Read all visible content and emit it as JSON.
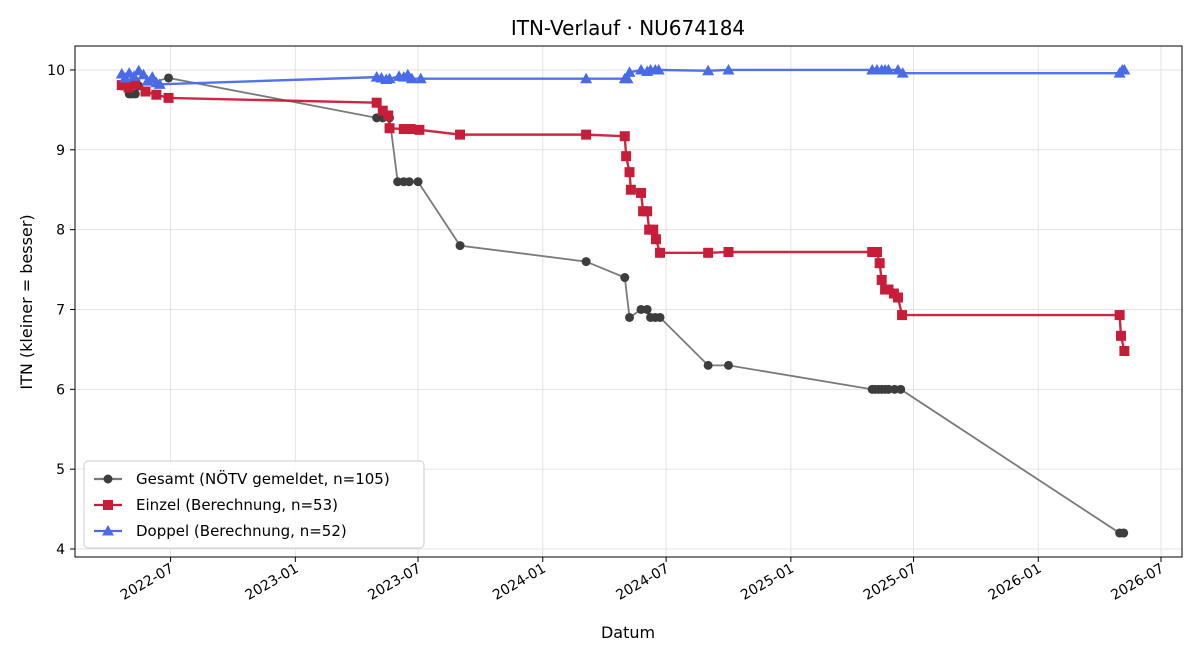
{
  "chart_data": {
    "type": "line",
    "title": "ITN-Verlauf · NU674184",
    "xlabel": "Datum",
    "ylabel": "ITN  (kleiner = besser)",
    "xlim": [
      "2022-02-10",
      "2026-08-01"
    ],
    "ylim": [
      3.9,
      10.3
    ],
    "grid": true,
    "legend_position": "bottom-left",
    "x_ticks": [
      "2022-07-01",
      "2023-01-01",
      "2023-07-01",
      "2024-01-01",
      "2024-07-01",
      "2025-01-01",
      "2025-07-01",
      "2026-01-01",
      "2026-07-01"
    ],
    "x_tick_labels": [
      "2022-07",
      "2023-01",
      "2023-07",
      "2024-01",
      "2024-07",
      "2025-01",
      "2025-07",
      "2026-01",
      "2026-07"
    ],
    "y_ticks": [
      4,
      5,
      6,
      7,
      8,
      9,
      10
    ],
    "series": [
      {
        "name": "Gesamt (NÖTV gemeldet, n=105)",
        "color": "#3d3d3d",
        "line_color": "#7a7a7a",
        "marker": "circle",
        "points": [
          [
            "2022-04-20",
            9.8
          ],
          [
            "2022-04-25",
            9.8
          ],
          [
            "2022-05-01",
            9.7
          ],
          [
            "2022-05-05",
            9.7
          ],
          [
            "2022-05-10",
            9.7
          ],
          [
            "2022-05-15",
            9.8
          ],
          [
            "2022-06-28",
            9.9
          ],
          [
            "2023-05-01",
            9.4
          ],
          [
            "2023-05-10",
            9.4
          ],
          [
            "2023-05-20",
            9.4
          ],
          [
            "2023-06-01",
            8.6
          ],
          [
            "2023-06-10",
            8.6
          ],
          [
            "2023-06-18",
            8.6
          ],
          [
            "2023-07-01",
            8.6
          ],
          [
            "2023-09-01",
            7.8
          ],
          [
            "2024-03-05",
            7.6
          ],
          [
            "2024-05-01",
            7.4
          ],
          [
            "2024-05-08",
            6.9
          ],
          [
            "2024-05-25",
            7.0
          ],
          [
            "2024-06-03",
            7.0
          ],
          [
            "2024-06-08",
            6.9
          ],
          [
            "2024-06-15",
            6.9
          ],
          [
            "2024-06-22",
            6.9
          ],
          [
            "2024-09-01",
            6.3
          ],
          [
            "2024-10-01",
            6.3
          ],
          [
            "2025-05-01",
            6.0
          ],
          [
            "2025-05-05",
            6.0
          ],
          [
            "2025-05-10",
            6.0
          ],
          [
            "2025-05-15",
            6.0
          ],
          [
            "2025-05-20",
            6.0
          ],
          [
            "2025-05-25",
            6.0
          ],
          [
            "2025-06-03",
            6.0
          ],
          [
            "2025-06-12",
            6.0
          ],
          [
            "2026-05-01",
            4.2
          ],
          [
            "2026-05-07",
            4.2
          ]
        ]
      },
      {
        "name": "Einzel (Berechnung, n=53)",
        "color": "#c81d38",
        "line_color": "#c81d38",
        "marker": "square",
        "points": [
          [
            "2022-04-20",
            9.81
          ],
          [
            "2022-04-30",
            9.78
          ],
          [
            "2022-05-10",
            9.82
          ],
          [
            "2022-05-25",
            9.73
          ],
          [
            "2022-06-10",
            9.69
          ],
          [
            "2022-06-28",
            9.65
          ],
          [
            "2023-05-01",
            9.59
          ],
          [
            "2023-05-10",
            9.49
          ],
          [
            "2023-05-18",
            9.43
          ],
          [
            "2023-05-20",
            9.27
          ],
          [
            "2023-06-10",
            9.26
          ],
          [
            "2023-06-20",
            9.26
          ],
          [
            "2023-07-03",
            9.25
          ],
          [
            "2023-09-01",
            9.19
          ],
          [
            "2024-03-05",
            9.19
          ],
          [
            "2024-05-01",
            9.17
          ],
          [
            "2024-05-03",
            8.92
          ],
          [
            "2024-05-08",
            8.72
          ],
          [
            "2024-05-10",
            8.5
          ],
          [
            "2024-05-25",
            8.46
          ],
          [
            "2024-05-28",
            8.23
          ],
          [
            "2024-06-03",
            8.23
          ],
          [
            "2024-06-06",
            8.0
          ],
          [
            "2024-06-12",
            8.0
          ],
          [
            "2024-06-16",
            7.88
          ],
          [
            "2024-06-22",
            7.71
          ],
          [
            "2024-09-01",
            7.71
          ],
          [
            "2024-10-01",
            7.72
          ],
          [
            "2025-05-01",
            7.72
          ],
          [
            "2025-05-08",
            7.72
          ],
          [
            "2025-05-12",
            7.58
          ],
          [
            "2025-05-15",
            7.37
          ],
          [
            "2025-05-20",
            7.25
          ],
          [
            "2025-05-25",
            7.25
          ],
          [
            "2025-06-02",
            7.2
          ],
          [
            "2025-06-08",
            7.15
          ],
          [
            "2025-06-14",
            6.93
          ],
          [
            "2026-05-01",
            6.93
          ],
          [
            "2026-05-03",
            6.67
          ],
          [
            "2026-05-08",
            6.48
          ]
        ]
      },
      {
        "name": "Doppel (Berechnung, n=52)",
        "color": "#4a6be8",
        "line_color": "#4a6be8",
        "marker": "triangle",
        "points": [
          [
            "2022-04-20",
            9.95
          ],
          [
            "2022-04-25",
            9.9
          ],
          [
            "2022-05-01",
            9.96
          ],
          [
            "2022-05-08",
            9.92
          ],
          [
            "2022-05-15",
            9.99
          ],
          [
            "2022-05-22",
            9.94
          ],
          [
            "2022-05-28",
            9.86
          ],
          [
            "2022-06-04",
            9.91
          ],
          [
            "2022-06-10",
            9.84
          ],
          [
            "2022-06-15",
            9.82
          ],
          [
            "2023-05-01",
            9.91
          ],
          [
            "2023-05-08",
            9.9
          ],
          [
            "2023-05-15",
            9.88
          ],
          [
            "2023-05-20",
            9.89
          ],
          [
            "2023-06-03",
            9.92
          ],
          [
            "2023-06-10",
            9.91
          ],
          [
            "2023-06-16",
            9.94
          ],
          [
            "2023-06-22",
            9.89
          ],
          [
            "2023-07-05",
            9.89
          ],
          [
            "2024-03-05",
            9.89
          ],
          [
            "2024-05-01",
            9.89
          ],
          [
            "2024-05-05",
            9.89
          ],
          [
            "2024-05-08",
            9.97
          ],
          [
            "2024-05-25",
            10.0
          ],
          [
            "2024-06-03",
            9.98
          ],
          [
            "2024-06-08",
            10.0
          ],
          [
            "2024-06-15",
            10.0
          ],
          [
            "2024-06-20",
            10.0
          ],
          [
            "2024-09-01",
            9.99
          ],
          [
            "2024-10-01",
            10.0
          ],
          [
            "2025-05-01",
            10.0
          ],
          [
            "2025-05-08",
            10.0
          ],
          [
            "2025-05-15",
            10.0
          ],
          [
            "2025-05-20",
            10.0
          ],
          [
            "2025-05-25",
            10.0
          ],
          [
            "2025-06-08",
            10.0
          ],
          [
            "2025-06-15",
            9.96
          ],
          [
            "2026-05-01",
            9.96
          ],
          [
            "2026-05-05",
            10.0
          ],
          [
            "2026-05-08",
            10.0
          ]
        ]
      }
    ]
  }
}
